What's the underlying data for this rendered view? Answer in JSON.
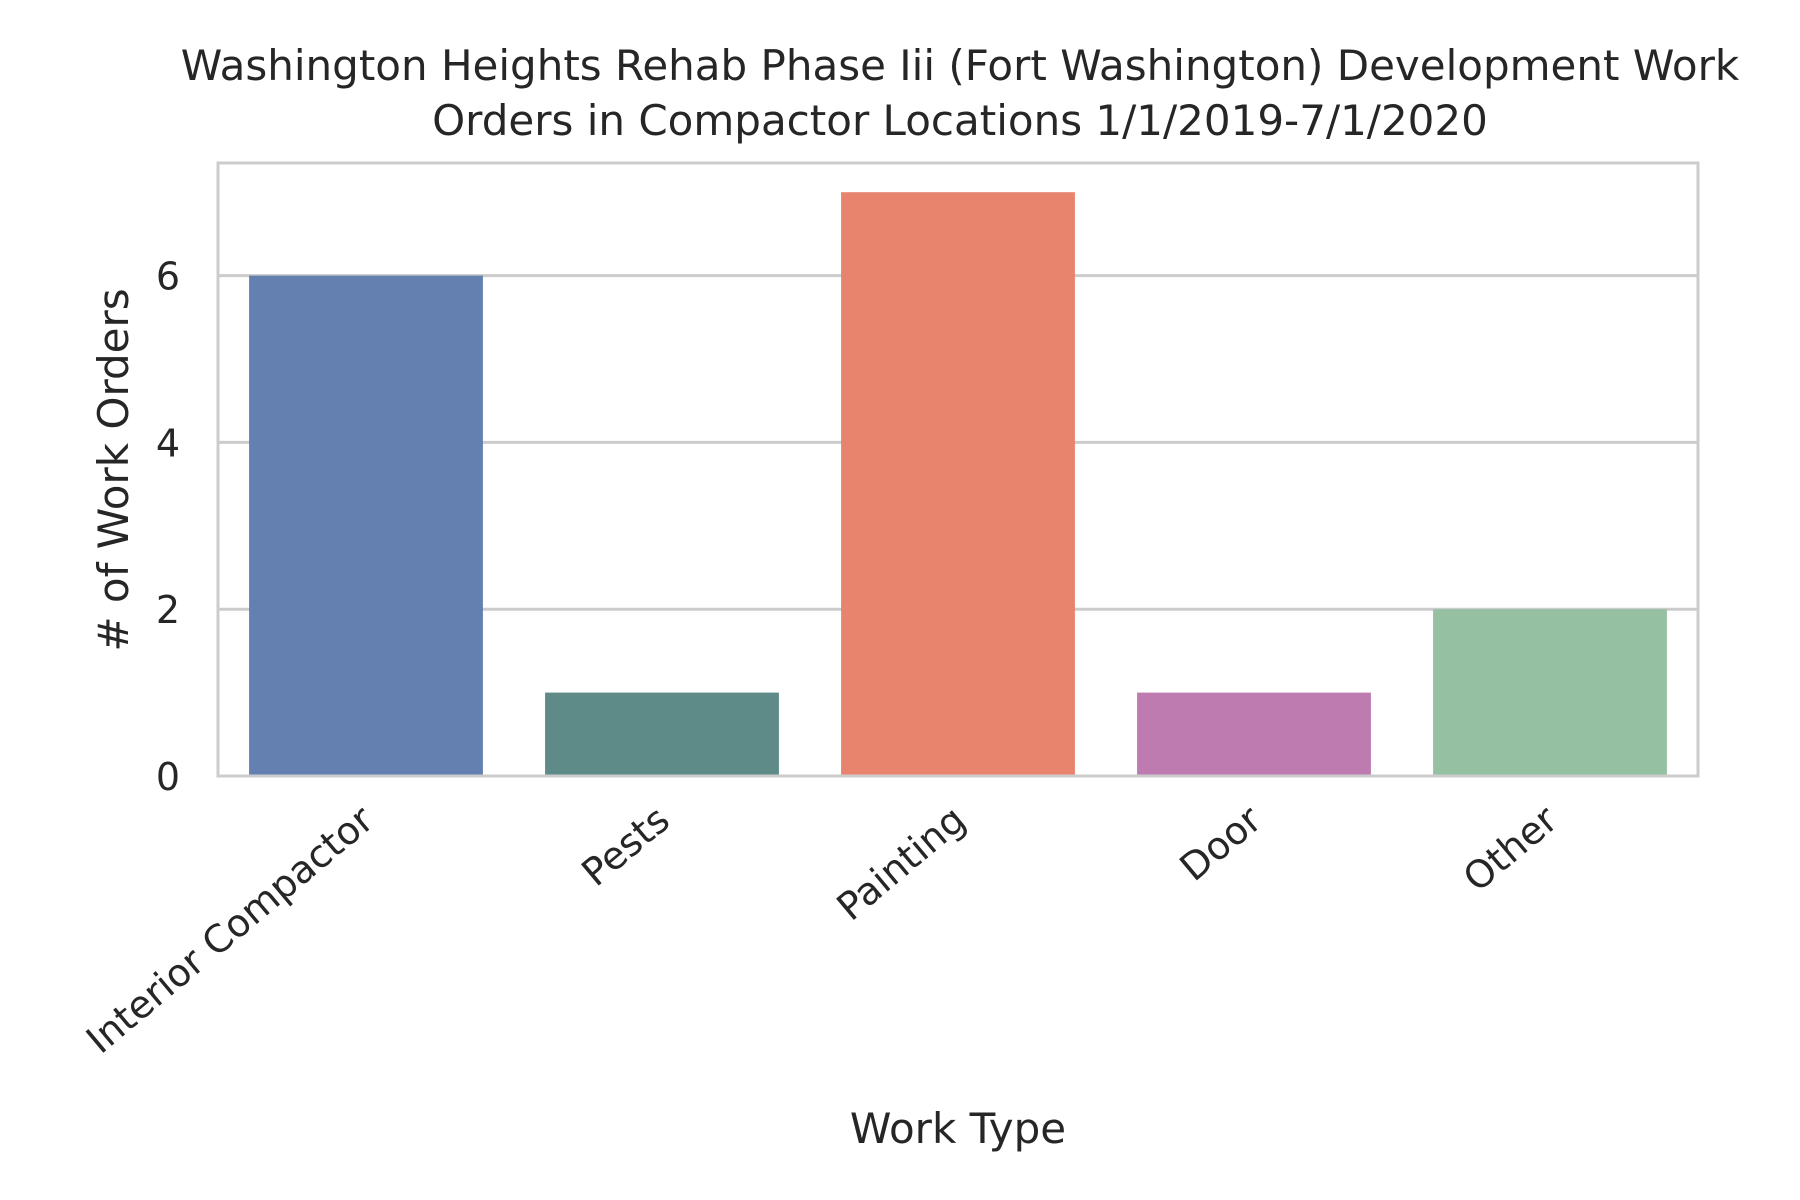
{
  "chart_data": {
    "type": "bar",
    "title": "Washington Heights Rehab Phase Iii (Fort Washington) Development Work Orders in Compactor Locations 1/1/2019-7/1/2020",
    "title_lines": [
      "Washington Heights Rehab Phase Iii (Fort Washington) Development Work",
      "Orders in Compactor Locations 1/1/2019-7/1/2020"
    ],
    "xlabel": "Work Type",
    "ylabel": "# of Work Orders",
    "categories": [
      "Interior Compactor",
      "Pests",
      "Painting",
      "Door",
      "Other"
    ],
    "values": [
      6,
      1,
      7,
      1,
      2
    ],
    "colors": [
      "#6480b0",
      "#5e8a87",
      "#e8846e",
      "#bd7bb0",
      "#96c0a2"
    ],
    "ylim": [
      0,
      7.35
    ],
    "yticks": [
      0,
      2,
      4,
      6
    ],
    "grid": true,
    "legend": "none"
  }
}
